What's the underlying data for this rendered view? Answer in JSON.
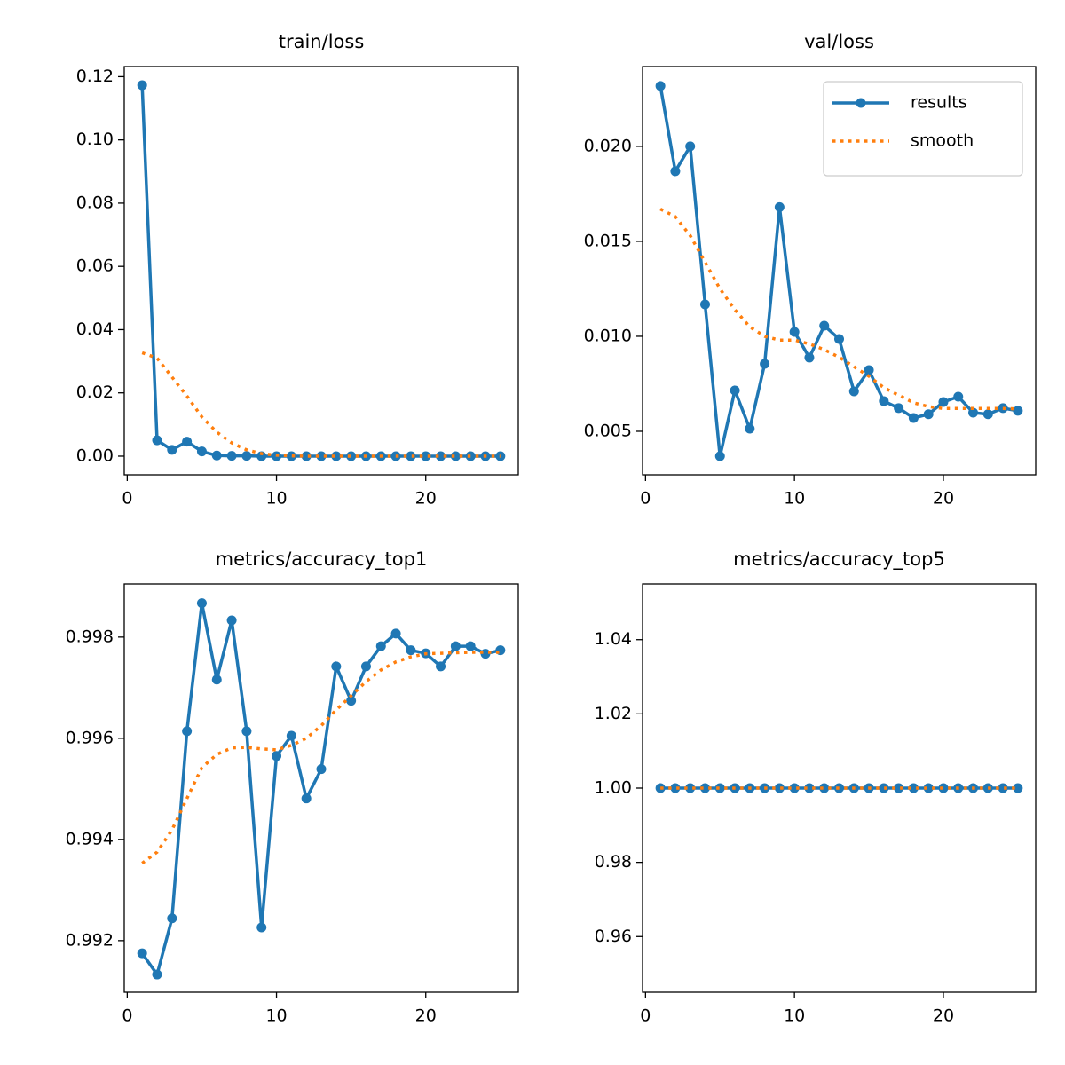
{
  "chart_data": [
    {
      "type": "line",
      "title": "train/loss",
      "x": [
        1,
        2,
        3,
        4,
        5,
        6,
        7,
        8,
        9,
        10,
        11,
        12,
        13,
        14,
        15,
        16,
        17,
        18,
        19,
        20,
        21,
        22,
        23,
        24,
        25
      ],
      "xlim": [
        -0.2,
        26.2
      ],
      "xticks": [
        0,
        10,
        20
      ],
      "ylim": [
        -0.0059,
        0.1232
      ],
      "yticks": [
        {
          "value": 0,
          "label": "0.00"
        },
        0.02,
        0.04,
        0.06,
        0.08,
        {
          "value": 0.1,
          "label": "0.10"
        },
        0.12
      ],
      "series": [
        {
          "color": "#1f77b4",
          "linestyle": "solid",
          "marker": true,
          "values": [
            0.1173,
            0.005,
            0.002,
            0.0046,
            0.0015,
            0.0002,
            0.0001,
            0.0001,
            0,
            0,
            0,
            0,
            0,
            0,
            0,
            0,
            0,
            0,
            0,
            0,
            0,
            0,
            0,
            0,
            0
          ]
        },
        {
          "color": "#ff7f0e",
          "linestyle": "dotted",
          "marker": false,
          "values": [
            0.0327,
            0.031,
            0.025,
            0.019,
            0.0124,
            0.0076,
            0.0042,
            0.002,
            0.0008,
            0.0003,
            0.0001,
            0,
            0,
            0,
            0,
            0,
            0,
            0,
            0,
            0,
            0,
            0,
            0,
            0,
            0
          ]
        }
      ]
    },
    {
      "type": "line",
      "title": "val/loss",
      "x": [
        1,
        2,
        3,
        4,
        5,
        6,
        7,
        8,
        9,
        10,
        11,
        12,
        13,
        14,
        15,
        16,
        17,
        18,
        19,
        20,
        21,
        22,
        23,
        24,
        25
      ],
      "xlim": [
        -0.2,
        26.2
      ],
      "xticks": [
        0,
        10,
        20
      ],
      "ylim": [
        0.00271,
        0.0242
      ],
      "yticks": [
        0.005,
        {
          "value": 0.01,
          "label": "0.010"
        },
        0.015,
        {
          "value": 0.02,
          "label": "0.020"
        }
      ],
      "legend": "upper right",
      "series": [
        {
          "name": "results",
          "color": "#1f77b4",
          "linestyle": "solid",
          "marker": true,
          "values": [
            0.02318,
            0.01869,
            0.02,
            0.01168,
            0.00369,
            0.00715,
            0.00514,
            0.00855,
            0.0168,
            0.01023,
            0.00888,
            0.01056,
            0.00986,
            0.0071,
            0.00822,
            0.00659,
            0.00622,
            0.0057,
            0.0059,
            0.00654,
            0.00682,
            0.00598,
            0.0059,
            0.00622,
            0.00608
          ]
        },
        {
          "name": "smooth",
          "color": "#ff7f0e",
          "linestyle": "dotted",
          "marker": false,
          "values": [
            0.0167,
            0.0163,
            0.0153,
            0.0139,
            0.0125,
            0.0114,
            0.0105,
            0.01,
            0.0098,
            0.0098,
            0.0096,
            0.0093,
            0.0089,
            0.0084,
            0.0079,
            0.0073,
            0.0069,
            0.0065,
            0.0063,
            0.0062,
            0.0062,
            0.0062,
            0.0062,
            0.0062,
            0.00618
          ]
        }
      ]
    },
    {
      "type": "line",
      "title": "metrics/accuracy_top1",
      "x": [
        1,
        2,
        3,
        4,
        5,
        6,
        7,
        8,
        9,
        10,
        11,
        12,
        13,
        14,
        15,
        16,
        17,
        18,
        19,
        20,
        21,
        22,
        23,
        24,
        25
      ],
      "xlim": [
        -0.2,
        26.2
      ],
      "xticks": [
        0,
        10,
        20
      ],
      "ylim": [
        0.99098,
        0.99905
      ],
      "yticks": [
        0.992,
        0.994,
        0.996,
        0.998
      ],
      "series": [
        {
          "color": "#1f77b4",
          "linestyle": "solid",
          "marker": true,
          "values": [
            0.99175,
            0.99133,
            0.99244,
            0.99614,
            0.99867,
            0.99716,
            0.99833,
            0.99614,
            0.99226,
            0.99565,
            0.99605,
            0.99481,
            0.99539,
            0.99742,
            0.99674,
            0.99742,
            0.99782,
            0.99807,
            0.99774,
            0.99768,
            0.99742,
            0.99782,
            0.99782,
            0.99767,
            0.99774
          ]
        },
        {
          "color": "#ff7f0e",
          "linestyle": "dotted",
          "marker": false,
          "values": [
            0.99353,
            0.99375,
            0.99419,
            0.99481,
            0.99542,
            0.99568,
            0.99581,
            0.99582,
            0.99579,
            0.99577,
            0.99586,
            0.996,
            0.99625,
            0.99656,
            0.99684,
            0.99712,
            0.99735,
            0.99751,
            0.99761,
            0.99767,
            0.99768,
            0.99769,
            0.9977,
            0.9977,
            0.9977
          ]
        }
      ]
    },
    {
      "type": "line",
      "title": "metrics/accuracy_top5",
      "x": [
        1,
        2,
        3,
        4,
        5,
        6,
        7,
        8,
        9,
        10,
        11,
        12,
        13,
        14,
        15,
        16,
        17,
        18,
        19,
        20,
        21,
        22,
        23,
        24,
        25
      ],
      "xlim": [
        -0.2,
        26.2
      ],
      "xticks": [
        0,
        10,
        20
      ],
      "ylim": [
        0.945,
        1.055
      ],
      "yticks": [
        0.96,
        0.98,
        {
          "value": 1,
          "label": "1.00"
        },
        1.02,
        1.04
      ],
      "series": [
        {
          "color": "#1f77b4",
          "linestyle": "solid",
          "marker": true,
          "values": [
            1,
            1,
            1,
            1,
            1,
            1,
            1,
            1,
            1,
            1,
            1,
            1,
            1,
            1,
            1,
            1,
            1,
            1,
            1,
            1,
            1,
            1,
            1,
            1,
            1
          ]
        },
        {
          "color": "#ff7f0e",
          "linestyle": "dotted",
          "marker": false,
          "values": [
            1,
            1,
            1,
            1,
            1,
            1,
            1,
            1,
            1,
            1,
            1,
            1,
            1,
            1,
            1,
            1,
            1,
            1,
            1,
            1,
            1,
            1,
            1,
            1,
            1
          ]
        }
      ]
    }
  ]
}
